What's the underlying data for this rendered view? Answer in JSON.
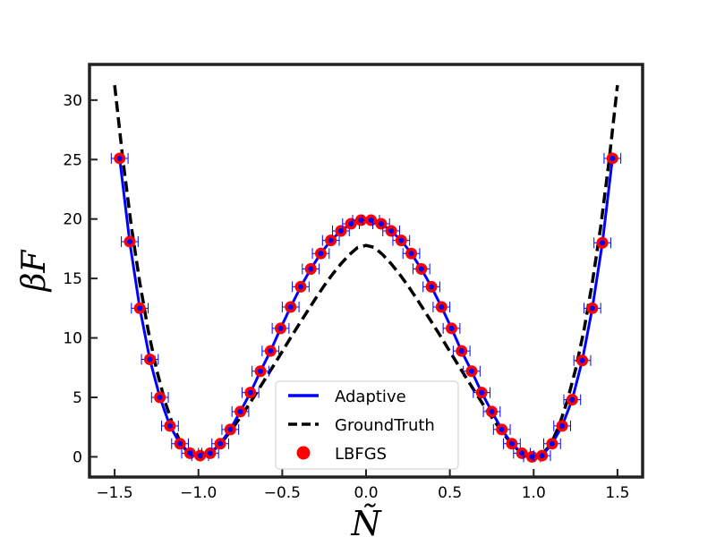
{
  "chart_data": {
    "type": "line",
    "title": "",
    "xlabel": "Ñ",
    "ylabel": "βF",
    "xlim": [
      -1.65,
      1.65
    ],
    "ylim": [
      -1.7,
      33
    ],
    "xticks": [
      -1.5,
      -1.0,
      -0.5,
      0.0,
      0.5,
      1.0,
      1.5
    ],
    "xtick_labels": [
      "−1.5",
      "−1.0",
      "−0.5",
      "0.0",
      "0.5",
      "1.0",
      "1.5"
    ],
    "yticks": [
      0,
      5,
      10,
      15,
      20,
      25,
      30
    ],
    "ytick_labels": [
      "0",
      "5",
      "10",
      "15",
      "20",
      "25",
      "30"
    ],
    "grid": false,
    "legend_position": "lower-center",
    "series": [
      {
        "name": "Adaptive",
        "kind": "line",
        "color": "#0000ff",
        "style": "solid",
        "x": [
          -1.47,
          -1.41,
          -1.35,
          -1.29,
          -1.23,
          -1.17,
          -1.11,
          -1.05,
          -0.99,
          -0.93,
          -0.87,
          -0.81,
          -0.75,
          -0.69,
          -0.63,
          -0.57,
          -0.51,
          -0.45,
          -0.39,
          -0.33,
          -0.27,
          -0.21,
          -0.15,
          -0.09,
          -0.03,
          0.03,
          0.09,
          0.15,
          0.21,
          0.27,
          0.33,
          0.39,
          0.45,
          0.51,
          0.57,
          0.63,
          0.69,
          0.75,
          0.81,
          0.87,
          0.93,
          0.99,
          1.05,
          1.11,
          1.17,
          1.23,
          1.29,
          1.35,
          1.41,
          1.47
        ],
        "y": [
          25.1,
          18.1,
          12.5,
          8.2,
          5.0,
          2.6,
          1.1,
          0.3,
          0.1,
          0.3,
          1.1,
          2.3,
          3.8,
          5.4,
          7.2,
          8.9,
          10.8,
          12.6,
          14.3,
          15.8,
          17.1,
          18.2,
          19.0,
          19.6,
          19.9,
          19.9,
          19.6,
          19.0,
          18.2,
          17.1,
          15.8,
          14.3,
          12.6,
          10.8,
          8.9,
          7.2,
          5.4,
          3.8,
          2.3,
          1.1,
          0.3,
          0.0,
          0.1,
          1.1,
          2.6,
          4.8,
          8.1,
          12.5,
          18.0,
          25.1
        ]
      },
      {
        "name": "GroundTruth",
        "kind": "line",
        "color": "#000000",
        "style": "dashed",
        "x": [
          -1.5,
          -1.45,
          -1.4,
          -1.35,
          -1.3,
          -1.25,
          -1.2,
          -1.15,
          -1.1,
          -1.05,
          -1.0,
          -0.95,
          -0.9,
          -0.85,
          -0.8,
          -0.75,
          -0.7,
          -0.65,
          -0.6,
          -0.55,
          -0.5,
          -0.45,
          -0.4,
          -0.35,
          -0.3,
          -0.25,
          -0.2,
          -0.15,
          -0.1,
          -0.05,
          0.0,
          0.05,
          0.1,
          0.15,
          0.2,
          0.25,
          0.3,
          0.35,
          0.4,
          0.45,
          0.5,
          0.55,
          0.6,
          0.65,
          0.7,
          0.75,
          0.8,
          0.85,
          0.9,
          0.95,
          1.0,
          1.05,
          1.1,
          1.15,
          1.2,
          1.25,
          1.3,
          1.35,
          1.4,
          1.45,
          1.5
        ],
        "y": [
          31.25,
          24.88,
          19.36,
          14.64,
          10.66,
          7.35,
          4.67,
          2.56,
          0.99,
          0.21,
          0.0,
          0.18,
          0.68,
          1.41,
          2.31,
          3.32,
          4.37,
          5.47,
          6.59,
          7.72,
          8.86,
          10.01,
          11.14,
          12.25,
          13.34,
          14.39,
          15.35,
          16.23,
          17.0,
          17.61,
          17.78,
          17.61,
          17.0,
          16.23,
          15.35,
          14.39,
          13.34,
          12.25,
          11.14,
          10.01,
          8.86,
          7.72,
          6.59,
          5.47,
          4.37,
          3.32,
          2.31,
          1.41,
          0.68,
          0.18,
          0.0,
          0.21,
          0.99,
          2.56,
          4.67,
          7.35,
          10.66,
          14.64,
          19.36,
          24.88,
          31.25
        ]
      },
      {
        "name": "LBFGS",
        "kind": "scatter",
        "color": "#ff0000",
        "errorbar_color": "#0000ff",
        "x_error": 0.05
      }
    ]
  }
}
